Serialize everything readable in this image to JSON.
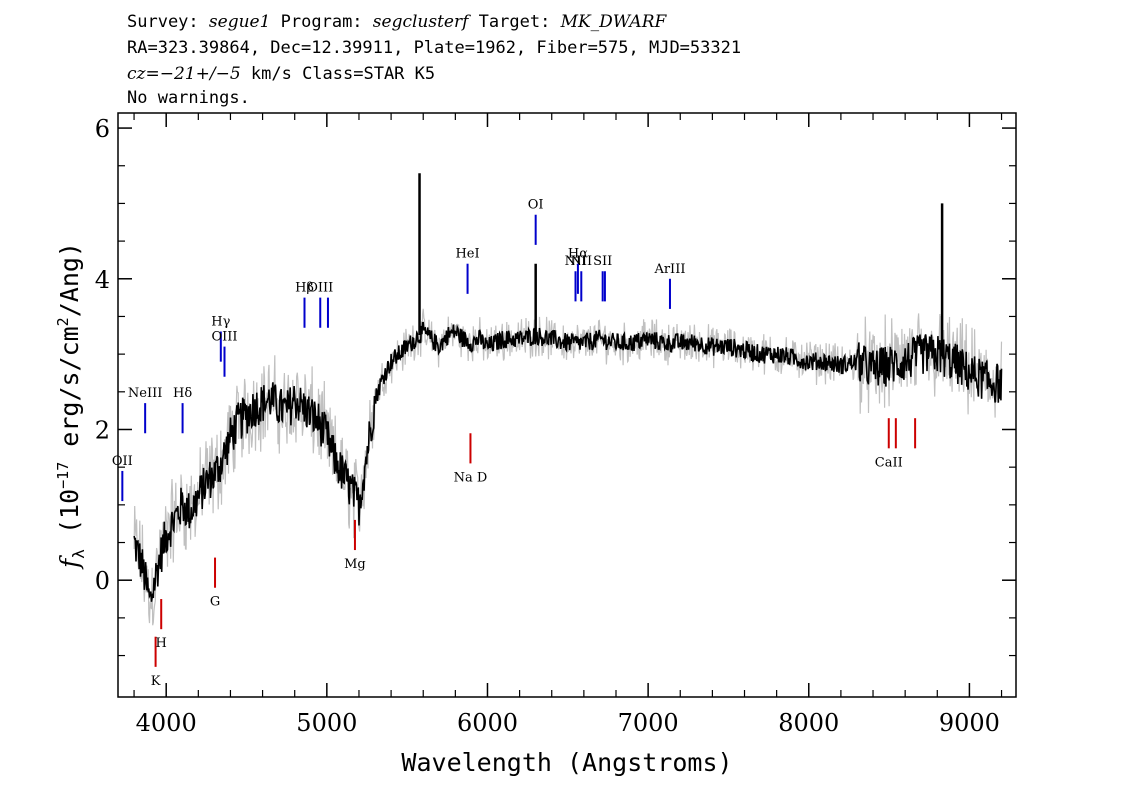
{
  "header": {
    "survey_label": "Survey:",
    "survey": "segue1",
    "program_label": "Program:",
    "program": "segclusterf",
    "target_label": "Target:",
    "target": "MK_DWARF",
    "line2": "RA=323.39864, Dec=12.39911, Plate=1962, Fiber=575, MJD=53321",
    "cz_label": "cz=",
    "cz_value": "−21+/−5",
    "line3_rest": " km/s Class=STAR K5",
    "line4": "No warnings."
  },
  "chart_data": {
    "type": "line",
    "title": "",
    "xlabel": "Wavelength (Angstroms)",
    "ylabel_prefix": "f",
    "ylabel_sub": "λ",
    "ylabel_mid": " (10",
    "ylabel_exp": "−17",
    "ylabel_units": " erg/s/cm",
    "ylabel_sq": "2",
    "ylabel_end": "/Ang)",
    "xlim": [
      3700,
      9290
    ],
    "ylim": [
      -1.55,
      6.2
    ],
    "x_ticks": [
      4000,
      5000,
      6000,
      7000,
      8000,
      9000
    ],
    "x_tick_labels": [
      "4000",
      "5000",
      "6000",
      "7000",
      "8000",
      "9000"
    ],
    "y_ticks": [
      0,
      2,
      4,
      6
    ],
    "y_tick_labels": [
      "0",
      "2",
      "4",
      "6"
    ],
    "series": [
      {
        "color": "#000000",
        "x": [
          3800,
          3850,
          3900,
          3950,
          4000,
          4050,
          4100,
          4150,
          4200,
          4250,
          4300,
          4350,
          4400,
          4450,
          4500,
          4550,
          4600,
          4650,
          4700,
          4750,
          4800,
          4850,
          4900,
          4950,
          5000,
          5050,
          5100,
          5150,
          5200,
          5250,
          5300,
          5350,
          5400,
          5450,
          5500,
          5550,
          5600,
          5650,
          5700,
          5750,
          5800,
          5850,
          5900,
          5950,
          6000,
          6100,
          6200,
          6300,
          6400,
          6500,
          6600,
          6700,
          6800,
          6900,
          7000,
          7100,
          7200,
          7300,
          7400,
          7500,
          7600,
          7700,
          7800,
          7900,
          8000,
          8100,
          8200,
          8300,
          8400,
          8500,
          8600,
          8700,
          8800,
          8900,
          9000,
          9100,
          9200
        ],
        "y": [
          0.5,
          0.2,
          -0.3,
          0.2,
          0.6,
          0.8,
          1.0,
          0.9,
          1.1,
          1.3,
          1.4,
          1.6,
          1.9,
          2.1,
          2.2,
          2.3,
          2.35,
          2.4,
          2.3,
          2.25,
          2.4,
          2.3,
          2.2,
          2.1,
          1.9,
          1.6,
          1.4,
          1.2,
          1.0,
          1.7,
          2.4,
          2.7,
          2.9,
          3.0,
          3.1,
          3.2,
          3.3,
          3.2,
          3.1,
          3.25,
          3.3,
          3.2,
          3.15,
          3.2,
          3.1,
          3.2,
          3.2,
          3.25,
          3.2,
          3.15,
          3.15,
          3.2,
          3.15,
          3.15,
          3.2,
          3.15,
          3.15,
          3.15,
          3.1,
          3.1,
          3.05,
          3.0,
          3.0,
          2.95,
          2.9,
          2.9,
          2.85,
          2.9,
          2.8,
          2.85,
          2.9,
          3.0,
          3.0,
          2.9,
          2.75,
          2.65,
          2.6
        ]
      }
    ],
    "spikes": [
      {
        "x": 5577,
        "y": 5.4
      },
      {
        "x": 6300,
        "y": 4.2
      },
      {
        "x": 8830,
        "y": 5.0
      }
    ],
    "emission_lines": [
      {
        "label": "OII",
        "x": 3727,
        "y_bottom": 1.05,
        "y_top": 1.45
      },
      {
        "label": "NeIII",
        "x": 3869,
        "y_bottom": 1.95,
        "y_top": 2.35
      },
      {
        "label": "Hδ",
        "x": 4102,
        "y_bottom": 1.95,
        "y_top": 2.35
      },
      {
        "label": "Hγ",
        "x": 4340,
        "y_bottom": 2.9,
        "y_top": 3.3
      },
      {
        "label": "OIII",
        "x": 4363,
        "y_bottom": 2.7,
        "y_top": 3.1
      },
      {
        "label": "Hβ",
        "x": 4861,
        "y_bottom": 3.35,
        "y_top": 3.75
      },
      {
        "label": "OIII",
        "x": 4959,
        "y_bottom": 3.35,
        "y_top": 3.75
      },
      {
        "label": "",
        "x": 5007,
        "y_bottom": 3.35,
        "y_top": 3.75
      },
      {
        "label": "HeI",
        "x": 5876,
        "y_bottom": 3.8,
        "y_top": 4.2
      },
      {
        "label": "OI",
        "x": 6300,
        "y_bottom": 4.45,
        "y_top": 4.85
      },
      {
        "label": "NII",
        "x": 6548,
        "y_bottom": 3.7,
        "y_top": 4.1
      },
      {
        "label": "Hα",
        "x": 6563,
        "y_bottom": 3.8,
        "y_top": 4.2
      },
      {
        "label": "NII",
        "x": 6584,
        "y_bottom": 3.7,
        "y_top": 4.1
      },
      {
        "label": "SII",
        "x": 6717,
        "y_bottom": 3.7,
        "y_top": 4.1
      },
      {
        "label": "",
        "x": 6731,
        "y_bottom": 3.7,
        "y_top": 4.1
      },
      {
        "label": "ArIII",
        "x": 7136,
        "y_bottom": 3.6,
        "y_top": 4.0
      }
    ],
    "absorption_lines": [
      {
        "label": "K",
        "x": 3934,
        "y_bottom": -1.15,
        "y_top": -0.75
      },
      {
        "label": "H",
        "x": 3969,
        "y_bottom": -0.65,
        "y_top": -0.25
      },
      {
        "label": "G",
        "x": 4304,
        "y_bottom": -0.1,
        "y_top": 0.3
      },
      {
        "label": "Mg",
        "x": 5175,
        "y_bottom": 0.4,
        "y_top": 0.8
      },
      {
        "label": "Na D",
        "x": 5894,
        "y_bottom": 1.55,
        "y_top": 1.95
      },
      {
        "label": "CaII",
        "x": 8498,
        "y_bottom": 1.75,
        "y_top": 2.15
      },
      {
        "label": "",
        "x": 8542,
        "y_bottom": 1.75,
        "y_top": 2.15
      },
      {
        "label": "",
        "x": 8662,
        "y_bottom": 1.75,
        "y_top": 2.15
      }
    ],
    "colors": {
      "flux": "#000000",
      "error": "#c0c0c0",
      "emission": "#0000cc",
      "absorption": "#cc0000"
    }
  }
}
